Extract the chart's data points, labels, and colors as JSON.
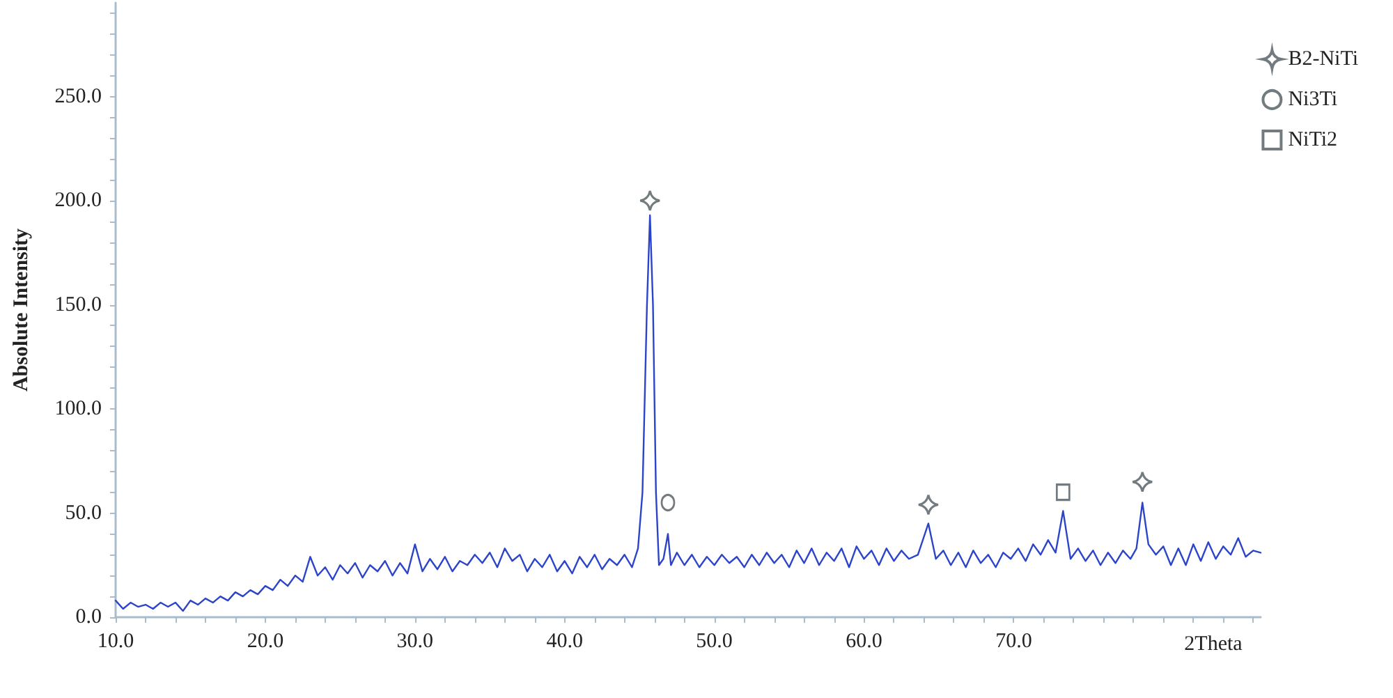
{
  "chart_data": {
    "type": "line",
    "xlabel": "2Theta",
    "ylabel": "Absolute Intensity",
    "xlim": [
      10,
      86.5
    ],
    "ylim": [
      0,
      295
    ],
    "xticks": [
      {
        "value": 10,
        "label": "10.0"
      },
      {
        "value": 20,
        "label": "20.0"
      },
      {
        "value": 30,
        "label": "30.0"
      },
      {
        "value": 40,
        "label": "40.0"
      },
      {
        "value": 50,
        "label": "50.0"
      },
      {
        "value": 60,
        "label": "60.0"
      },
      {
        "value": 70,
        "label": "70.0"
      }
    ],
    "yticks": [
      {
        "value": 0,
        "label": "0.0"
      },
      {
        "value": 50,
        "label": "50.0"
      },
      {
        "value": 100,
        "label": "100.0"
      },
      {
        "value": 150,
        "label": "150.0"
      },
      {
        "value": 200,
        "label": "200.0"
      },
      {
        "value": 250,
        "label": "250.0"
      }
    ],
    "grid": false,
    "legend": "top right",
    "marker": "none",
    "line_style": "solid",
    "series": [
      {
        "color": "#2b44c9",
        "x": [
          10.0,
          10.5,
          11.0,
          11.5,
          12.0,
          12.5,
          13.0,
          13.5,
          14.0,
          14.5,
          15.0,
          15.5,
          16.0,
          16.5,
          17.0,
          17.5,
          18.0,
          18.5,
          19.0,
          19.5,
          20.0,
          20.5,
          21.0,
          21.5,
          22.0,
          22.5,
          23.0,
          23.5,
          24.0,
          24.5,
          25.0,
          25.5,
          26.0,
          26.5,
          27.0,
          27.5,
          28.0,
          28.5,
          29.0,
          29.5,
          30.0,
          30.5,
          31.0,
          31.5,
          32.0,
          32.5,
          33.0,
          33.5,
          34.0,
          34.5,
          35.0,
          35.5,
          36.0,
          36.5,
          37.0,
          37.5,
          38.0,
          38.5,
          39.0,
          39.5,
          40.0,
          40.5,
          41.0,
          41.5,
          42.0,
          42.5,
          43.0,
          43.5,
          44.0,
          44.5,
          44.9,
          45.2,
          45.5,
          45.7,
          45.9,
          46.1,
          46.3,
          46.6,
          46.9,
          47.1,
          47.5,
          48.0,
          48.5,
          49.0,
          49.5,
          50.0,
          50.5,
          51.0,
          51.5,
          52.0,
          52.5,
          53.0,
          53.5,
          54.0,
          54.5,
          55.0,
          55.5,
          56.0,
          56.5,
          57.0,
          57.5,
          58.0,
          58.5,
          59.0,
          59.5,
          60.0,
          60.5,
          61.0,
          61.5,
          62.0,
          62.5,
          63.0,
          63.6,
          64.3,
          64.8,
          65.3,
          65.8,
          66.3,
          66.8,
          67.3,
          67.8,
          68.3,
          68.8,
          69.3,
          69.8,
          70.3,
          70.8,
          71.3,
          71.8,
          72.3,
          72.8,
          73.3,
          73.8,
          74.3,
          74.8,
          75.3,
          75.8,
          76.3,
          76.8,
          77.3,
          77.8,
          78.2,
          78.6,
          79.0,
          79.5,
          80.0,
          80.5,
          81.0,
          81.5,
          82.0,
          82.5,
          83.0,
          83.5,
          84.0,
          84.5,
          85.0,
          85.5,
          86.0,
          86.5
        ],
        "values": [
          8,
          4,
          7,
          5,
          6,
          4,
          7,
          5,
          7,
          3,
          8,
          6,
          9,
          7,
          10,
          8,
          12,
          10,
          13,
          11,
          15,
          13,
          18,
          15,
          20,
          17,
          29,
          20,
          24,
          18,
          25,
          21,
          26,
          19,
          25,
          22,
          27,
          20,
          26,
          21,
          35,
          22,
          28,
          23,
          29,
          22,
          27,
          25,
          30,
          26,
          31,
          24,
          33,
          27,
          30,
          22,
          28,
          24,
          30,
          22,
          27,
          21,
          29,
          24,
          30,
          23,
          28,
          25,
          30,
          24,
          33,
          60,
          150,
          193,
          150,
          60,
          25,
          28,
          40,
          25,
          31,
          25,
          30,
          24,
          29,
          25,
          30,
          26,
          29,
          24,
          30,
          25,
          31,
          26,
          30,
          24,
          32,
          26,
          33,
          25,
          31,
          27,
          33,
          24,
          34,
          28,
          32,
          25,
          33,
          27,
          32,
          28,
          30,
          45,
          28,
          32,
          25,
          31,
          24,
          32,
          26,
          30,
          24,
          31,
          28,
          33,
          27,
          35,
          30,
          37,
          31,
          51,
          28,
          33,
          27,
          32,
          25,
          31,
          26,
          32,
          28,
          33,
          55,
          35,
          30,
          34,
          25,
          33,
          25,
          35,
          27,
          36,
          28,
          34,
          30,
          38,
          29,
          32,
          31
        ]
      },
      {
        "type": "scatter",
        "name": "B2-NiTi",
        "marker": "star",
        "color": "#4d5a60",
        "x": [
          45.7,
          64.3,
          78.6
        ],
        "values": [
          200,
          54,
          65
        ]
      },
      {
        "type": "scatter",
        "name": "Ni3Ti",
        "marker": "circle",
        "color": "#4d5a60",
        "x": [
          46.9
        ],
        "values": [
          55
        ]
      },
      {
        "type": "scatter",
        "name": "NiTi2",
        "marker": "square",
        "color": "#4d5a60",
        "x": [
          73.3
        ],
        "values": [
          60
        ]
      }
    ]
  }
}
